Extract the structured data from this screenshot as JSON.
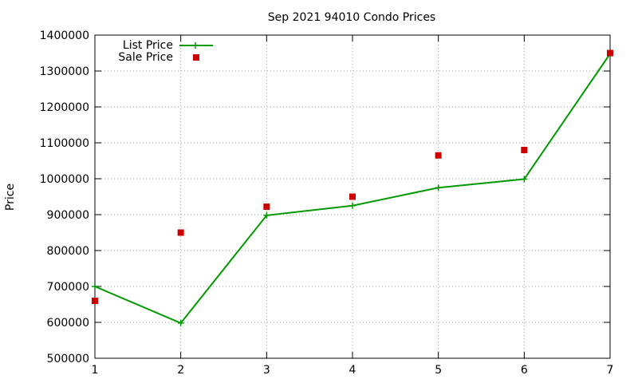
{
  "chart_data": {
    "type": "line",
    "title": "Sep 2021 94010 Condo Prices",
    "xlabel": "",
    "ylabel": "Price",
    "x": [
      1,
      2,
      3,
      4,
      5,
      6,
      7
    ],
    "xlim": [
      1,
      7
    ],
    "ylim": [
      500000,
      1400000
    ],
    "xticks": [
      "1",
      "2",
      "3",
      "4",
      "5",
      "6",
      "7"
    ],
    "yticks": [
      "500000",
      "600000",
      "700000",
      "800000",
      "900000",
      "1000000",
      "1100000",
      "1200000",
      "1300000",
      "1400000"
    ],
    "grid": true,
    "legend_position": "top-left",
    "series": [
      {
        "name": "List Price",
        "style": "line-with-plus-markers",
        "color": "#009900",
        "values": [
          700000,
          598000,
          898000,
          925000,
          975000,
          999000,
          1348000
        ]
      },
      {
        "name": "Sale Price",
        "style": "square-markers",
        "color": "#cc0000",
        "values": [
          660000,
          850000,
          922000,
          950000,
          1065000,
          1080000,
          1350000
        ]
      }
    ]
  }
}
